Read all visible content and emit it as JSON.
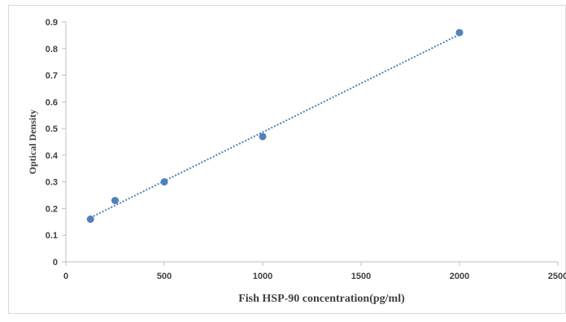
{
  "chart_data": {
    "type": "scatter",
    "title": "",
    "xlabel": "Fish HSP-90 concentration(pg/ml)",
    "ylabel": "Optical Density",
    "xlim": [
      0,
      2500
    ],
    "ylim": [
      0,
      0.9
    ],
    "x_ticks": [
      "0",
      "500",
      "1000",
      "1500",
      "2000",
      "2500"
    ],
    "y_ticks": [
      "0",
      "0.1",
      "0.2",
      "0.3",
      "0.4",
      "0.5",
      "0.6",
      "0.7",
      "0.8",
      "0.9"
    ],
    "grid": false,
    "legend": false,
    "series": [
      {
        "x": [
          125,
          250,
          500,
          1000,
          2000
        ],
        "y": [
          0.16,
          0.23,
          0.3,
          0.47,
          0.86
        ],
        "color": "#4f81bd",
        "trendline": "linear"
      }
    ],
    "trendline_color": "#4f81bd"
  }
}
